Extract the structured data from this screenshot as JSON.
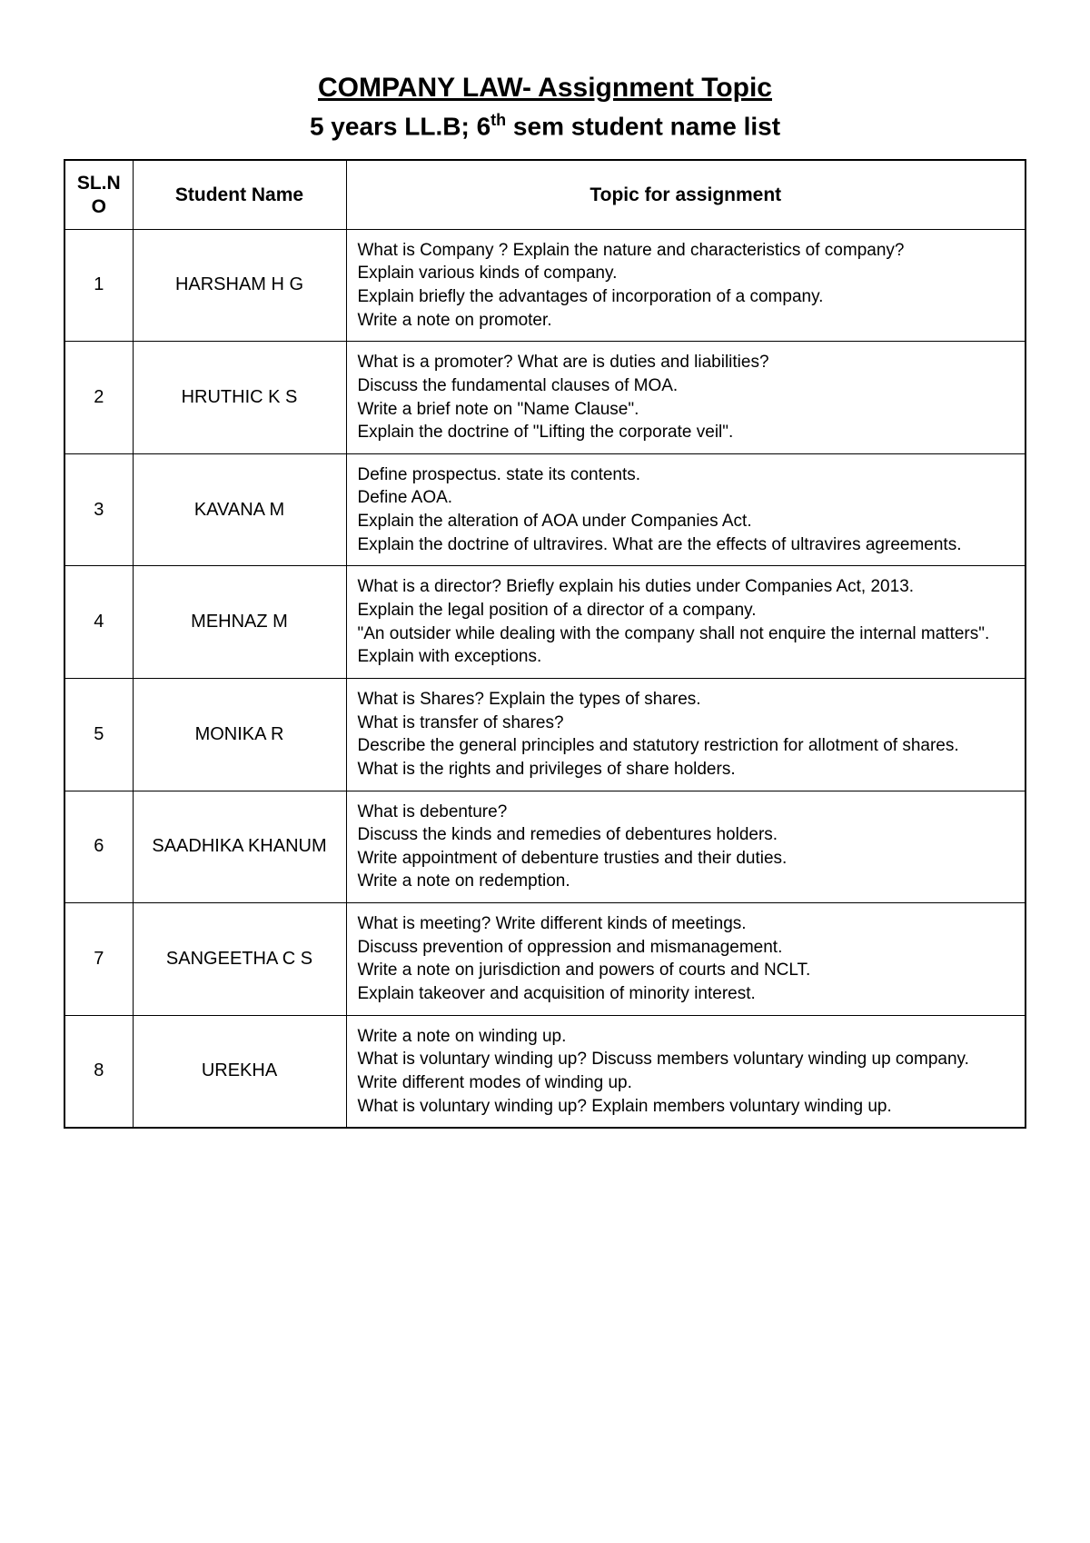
{
  "title": "COMPANY LAW- Assignment Topic",
  "subtitle_prefix": "5 years LL.B;  6",
  "subtitle_sup": "th",
  "subtitle_suffix": " sem student name list",
  "table": {
    "headers": {
      "slno": "SL.N\nO",
      "name": "Student Name",
      "topic": "Topic for assignment"
    },
    "rows": [
      {
        "slno": "1",
        "name": "HARSHAM H G",
        "topic": "What is Company ? Explain the nature and characteristics of company?\nExplain various kinds of company.\nExplain briefly the advantages of incorporation of a company.\nWrite a note on promoter."
      },
      {
        "slno": "2",
        "name": "HRUTHIC K S",
        "topic": "What is a promoter? What are is duties and liabilities?\nDiscuss the fundamental clauses of MOA.\nWrite a brief note on \"Name Clause\".\nExplain the doctrine of \"Lifting the corporate veil\"."
      },
      {
        "slno": "3",
        "name": "KAVANA M",
        "topic": "Define prospectus. state its contents.\nDefine AOA.\nExplain the alteration of AOA under Companies Act.\nExplain the doctrine of ultravires. What are the effects of ultravires agreements."
      },
      {
        "slno": "4",
        "name": "MEHNAZ M",
        "topic": "What is a director? Briefly explain his duties under Companies Act, 2013.\nExplain the legal position of a director of a company.\n\"An outsider while dealing with the company shall not enquire the internal matters\". Explain with exceptions."
      },
      {
        "slno": "5",
        "name": "MONIKA R",
        "topic": "What is Shares? Explain the types of shares.\nWhat is transfer of shares?\nDescribe the general principles and statutory restriction for allotment of shares.\nWhat is the rights and privileges of share holders."
      },
      {
        "slno": "6",
        "name": "SAADHIKA KHANUM",
        "topic": "What is debenture?\nDiscuss the kinds and remedies of debentures holders.\nWrite appointment of debenture trusties and their duties.\nWrite a note on redemption."
      },
      {
        "slno": "7",
        "name": "SANGEETHA C S",
        "topic": "What is meeting? Write different kinds of meetings.\nDiscuss prevention of oppression and mismanagement.\nWrite a note on jurisdiction and powers of courts and NCLT.\nExplain takeover and acquisition of minority interest."
      },
      {
        "slno": "8",
        "name": "UREKHA",
        "topic": "Write a note on winding up.\nWhat is voluntary winding up? Discuss members voluntary winding up company.\nWrite different modes of winding up.\nWhat is voluntary winding up? Explain members voluntary winding up."
      }
    ]
  }
}
